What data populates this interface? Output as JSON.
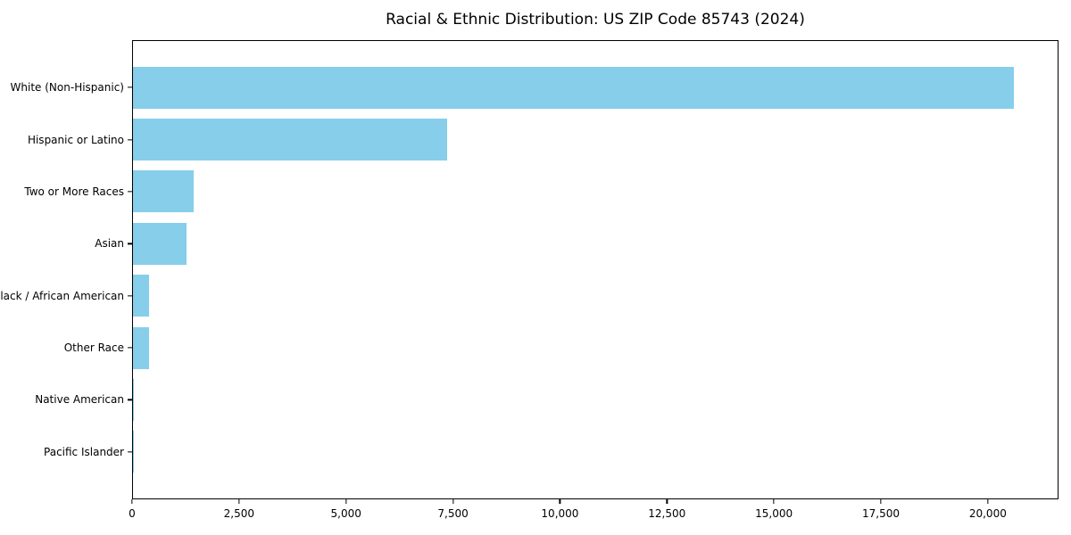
{
  "chart_data": {
    "type": "bar",
    "orientation": "horizontal",
    "title": "Racial & Ethnic Distribution: US ZIP Code 85743 (2024)",
    "categories": [
      "White (Non-Hispanic)",
      "Hispanic or Latino",
      "Two or More Races",
      "Asian",
      "Black / African American",
      "Other Race",
      "Native American",
      "Pacific Islander"
    ],
    "values": [
      20600,
      7340,
      1420,
      1260,
      380,
      375,
      30,
      10
    ],
    "xlabel": "",
    "ylabel": "",
    "xlim": [
      0,
      21630
    ],
    "x_ticks": [
      0,
      2500,
      5000,
      7500,
      10000,
      12500,
      15000,
      17500,
      20000
    ],
    "x_tick_labels": [
      "0",
      "2,500",
      "5,000",
      "7,500",
      "10,000",
      "12,500",
      "15,000",
      "17,500",
      "20,000"
    ],
    "grid": false,
    "legend": null,
    "bar_color": "#87CEEB",
    "text_color": "#000000",
    "frame_color": "#000000",
    "background_color": "#ffffff"
  }
}
